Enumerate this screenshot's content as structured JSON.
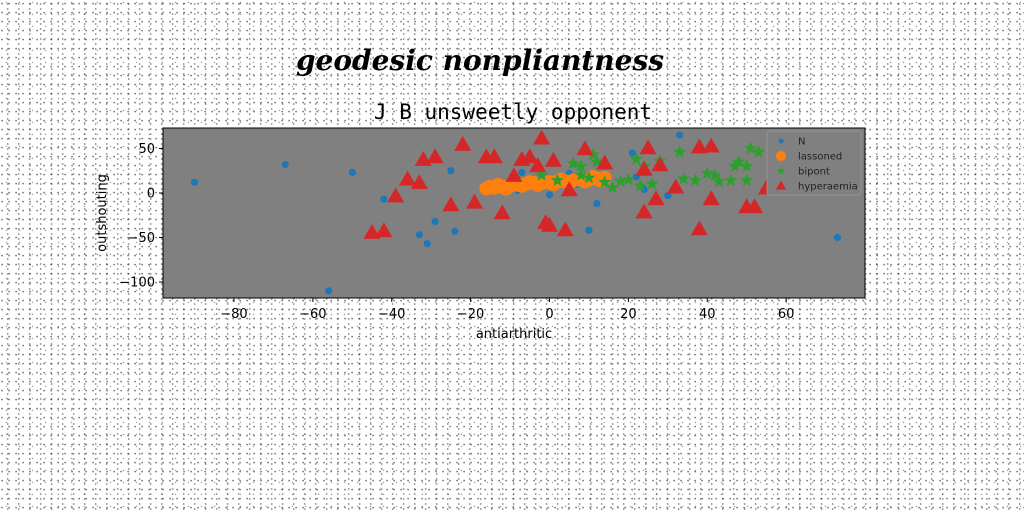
{
  "suptitle": "geodesic nonpliantness",
  "chart_data": {
    "type": "scatter",
    "title": "J B unsweetly opponent",
    "xlabel": "antiarthritic",
    "ylabel": "outshouting",
    "xlim": [
      -98,
      80
    ],
    "ylim": [
      -118,
      73
    ],
    "xticks": [
      -80,
      -60,
      -40,
      -20,
      0,
      20,
      40,
      60
    ],
    "yticks": [
      50,
      0,
      -50,
      -100
    ],
    "tick_labels_x": [
      "−80",
      "−60",
      "−40",
      "−20",
      "0",
      "20",
      "40",
      "60"
    ],
    "tick_labels_y": [
      "50",
      "0",
      "−50",
      "−100"
    ],
    "background": "#808080",
    "grid": false,
    "legend_position": "upper-right",
    "series": [
      {
        "name": "N",
        "marker": "circle",
        "color": "#1f77b4",
        "points": [
          [
            -90,
            12
          ],
          [
            -67,
            32
          ],
          [
            -50,
            23
          ],
          [
            -42,
            -7
          ],
          [
            -33,
            -47
          ],
          [
            -31,
            -57
          ],
          [
            -29,
            -32
          ],
          [
            -25,
            25
          ],
          [
            -24,
            -43
          ],
          [
            -56,
            -110
          ],
          [
            -8,
            3
          ],
          [
            -3,
            13
          ],
          [
            0,
            -2
          ],
          [
            7,
            10
          ],
          [
            10,
            -42
          ],
          [
            12,
            -12
          ],
          [
            21,
            45
          ],
          [
            22,
            18
          ],
          [
            24,
            4
          ],
          [
            33,
            65
          ],
          [
            73,
            -50
          ],
          [
            -7,
            23
          ],
          [
            5,
            22
          ],
          [
            30,
            -3
          ]
        ]
      },
      {
        "name": "lassoned",
        "marker": "circle",
        "color": "#ff7f0e",
        "points": [
          [
            -16,
            5
          ],
          [
            -14,
            6
          ],
          [
            -12,
            7
          ],
          [
            -10,
            8
          ],
          [
            -8,
            9
          ],
          [
            -6,
            10
          ],
          [
            -4,
            11
          ],
          [
            -2,
            11
          ],
          [
            0,
            12
          ],
          [
            2,
            13
          ],
          [
            4,
            13
          ],
          [
            6,
            14
          ],
          [
            8,
            15
          ],
          [
            10,
            15
          ],
          [
            12,
            16
          ],
          [
            14,
            17
          ],
          [
            -15,
            7
          ],
          [
            -11,
            5
          ],
          [
            -7,
            8
          ],
          [
            -3,
            9
          ],
          [
            1,
            10
          ],
          [
            5,
            12
          ],
          [
            9,
            13
          ],
          [
            13,
            14
          ],
          [
            -13,
            9
          ],
          [
            -5,
            12
          ],
          [
            3,
            15
          ],
          [
            11,
            18
          ]
        ]
      },
      {
        "name": "bipont",
        "marker": "star",
        "color": "#2ca02c",
        "points": [
          [
            6,
            33
          ],
          [
            8,
            30
          ],
          [
            11,
            43
          ],
          [
            12,
            35
          ],
          [
            10,
            17
          ],
          [
            14,
            12
          ],
          [
            18,
            13
          ],
          [
            20,
            15
          ],
          [
            22,
            38
          ],
          [
            23,
            8
          ],
          [
            26,
            10
          ],
          [
            28,
            36
          ],
          [
            33,
            46
          ],
          [
            37,
            14
          ],
          [
            40,
            22
          ],
          [
            42,
            20
          ],
          [
            43,
            13
          ],
          [
            46,
            14
          ],
          [
            47,
            30
          ],
          [
            48,
            35
          ],
          [
            50,
            14
          ],
          [
            50,
            30
          ],
          [
            51,
            50
          ],
          [
            53,
            46
          ],
          [
            8,
            20
          ],
          [
            2,
            14
          ],
          [
            -2,
            20
          ],
          [
            16,
            6
          ],
          [
            24,
            30
          ],
          [
            34,
            16
          ]
        ]
      },
      {
        "name": "hyperaemia",
        "marker": "triangle",
        "color": "#d62728",
        "points": [
          [
            -42,
            -43
          ],
          [
            -39,
            -4
          ],
          [
            -33,
            11
          ],
          [
            -32,
            37
          ],
          [
            -29,
            40
          ],
          [
            -22,
            54
          ],
          [
            -19,
            -11
          ],
          [
            -16,
            40
          ],
          [
            -14,
            40
          ],
          [
            -12,
            -23
          ],
          [
            -9,
            19
          ],
          [
            -7,
            37
          ],
          [
            -5,
            40
          ],
          [
            -2,
            61
          ],
          [
            -1,
            -34
          ],
          [
            0,
            -37
          ],
          [
            1,
            36
          ],
          [
            4,
            -42
          ],
          [
            5,
            3
          ],
          [
            9,
            49
          ],
          [
            14,
            33
          ],
          [
            24,
            26
          ],
          [
            24,
            -22
          ],
          [
            25,
            50
          ],
          [
            27,
            -7
          ],
          [
            28,
            31
          ],
          [
            32,
            6
          ],
          [
            38,
            -41
          ],
          [
            38,
            51
          ],
          [
            41,
            52
          ],
          [
            41,
            -7
          ],
          [
            50,
            -16
          ],
          [
            52,
            -16
          ],
          [
            55,
            5
          ],
          [
            -25,
            -14
          ],
          [
            -45,
            -45
          ],
          [
            -36,
            15
          ],
          [
            -3,
            30
          ]
        ]
      }
    ]
  }
}
